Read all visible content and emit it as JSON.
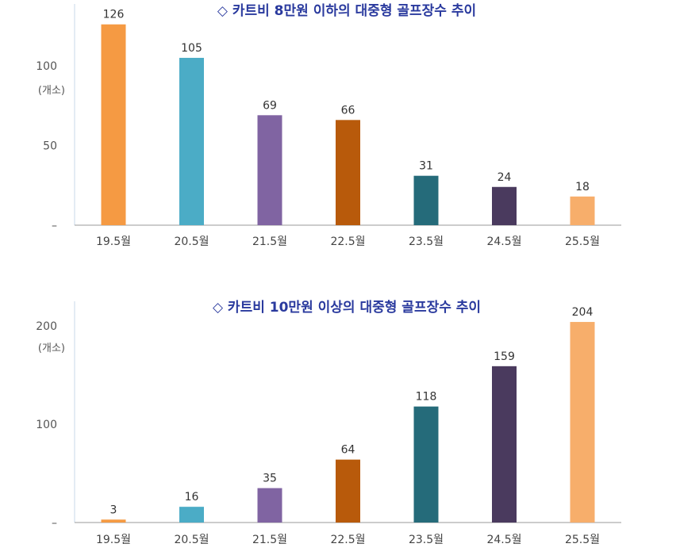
{
  "chart_data": [
    {
      "type": "bar",
      "title": "◇ 카트비 8만원 이하의 대중형 골프장수 추이",
      "unit_label": "(개소)",
      "categories": [
        "19.5월",
        "20.5월",
        "21.5월",
        "22.5월",
        "23.5월",
        "24.5월",
        "25.5월"
      ],
      "values": [
        126,
        105,
        69,
        66,
        31,
        24,
        18
      ],
      "colors": [
        "#F59A43",
        "#4BACC6",
        "#8064A2",
        "#B85A0B",
        "#256B7A",
        "#4A3A5E",
        "#F7AE6B"
      ],
      "ylim": [
        0,
        140
      ],
      "yticks": [
        {
          "value": 0,
          "label": "–"
        },
        {
          "value": 50,
          "label": "50"
        },
        {
          "value": 100,
          "label": "100"
        }
      ],
      "grid": false,
      "legend": "none"
    },
    {
      "type": "bar",
      "title": "◇ 카트비 10만원 이상의 대중형 골프장수 추이",
      "unit_label": "(개소)",
      "categories": [
        "19.5월",
        "20.5월",
        "21.5월",
        "22.5월",
        "23.5월",
        "24.5월",
        "25.5월"
      ],
      "values": [
        3,
        16,
        35,
        64,
        118,
        159,
        204
      ],
      "colors": [
        "#F59A43",
        "#4BACC6",
        "#8064A2",
        "#B85A0B",
        "#256B7A",
        "#4A3A5E",
        "#F7AE6B"
      ],
      "ylim": [
        0,
        225
      ],
      "yticks": [
        {
          "value": 0,
          "label": "–"
        },
        {
          "value": 100,
          "label": "100"
        },
        {
          "value": 200,
          "label": "200"
        }
      ],
      "grid": false,
      "legend": "none"
    }
  ]
}
